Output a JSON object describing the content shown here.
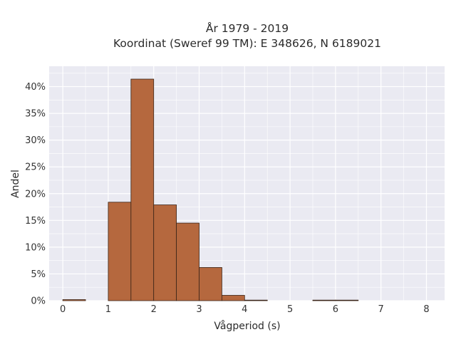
{
  "chart_data": {
    "type": "bar",
    "title_line1": "År 1979 - 2019",
    "title_line2": "Koordinat (Sweref 99 TM): E 348626, N 6189021",
    "xlabel": "Vågperiod (s)",
    "ylabel": "Andel",
    "xlim": [
      -0.3,
      8.4
    ],
    "ylim": [
      0,
      0.438
    ],
    "x_ticks": [
      0,
      1,
      2,
      3,
      4,
      5,
      6,
      7,
      8
    ],
    "y_ticks": [
      0,
      0.05,
      0.1,
      0.15,
      0.2,
      0.25,
      0.3,
      0.35,
      0.4
    ],
    "y_tick_labels": [
      "0%",
      "5%",
      "10%",
      "15%",
      "20%",
      "25%",
      "30%",
      "35%",
      "40%"
    ],
    "bin_width": 0.5,
    "bins": [
      {
        "start": 0.0,
        "value": 0.002
      },
      {
        "start": 0.5,
        "value": 0.0
      },
      {
        "start": 1.0,
        "value": 0.184
      },
      {
        "start": 1.5,
        "value": 0.414
      },
      {
        "start": 2.0,
        "value": 0.179
      },
      {
        "start": 2.5,
        "value": 0.145
      },
      {
        "start": 3.0,
        "value": 0.062
      },
      {
        "start": 3.5,
        "value": 0.01
      },
      {
        "start": 4.0,
        "value": 0.0005
      },
      {
        "start": 4.5,
        "value": 0.0
      },
      {
        "start": 5.0,
        "value": 0.0
      },
      {
        "start": 5.5,
        "value": 0.0006
      },
      {
        "start": 6.0,
        "value": 0.0006
      },
      {
        "start": 6.5,
        "value": 0.0
      },
      {
        "start": 7.0,
        "value": 0.0
      },
      {
        "start": 7.5,
        "value": 0.0
      }
    ],
    "grid": true,
    "colors": {
      "bar_fill": "#b5683e",
      "bar_stroke": "#3a2418",
      "plot_background": "#eaeaf2",
      "grid": "#ffffff"
    }
  }
}
